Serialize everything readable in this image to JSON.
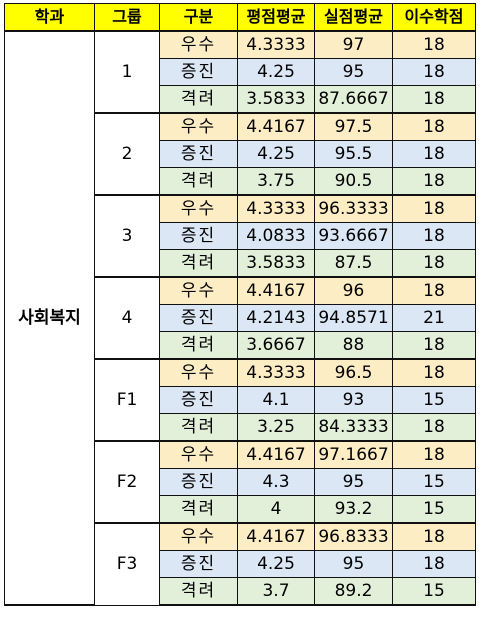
{
  "headers": {
    "dept": "학과",
    "group": "그룹",
    "type": "구분",
    "gpa": "평점평균",
    "real": "실점평균",
    "credits": "이수학점"
  },
  "dept": "사회복지",
  "groups": [
    {
      "name": "1",
      "rows": [
        {
          "type": "우수",
          "gpa": "4.3333",
          "real": "97",
          "credits": "18"
        },
        {
          "type": "증진",
          "gpa": "4.25",
          "real": "95",
          "credits": "18"
        },
        {
          "type": "격려",
          "gpa": "3.5833",
          "real": "87.6667",
          "credits": "18"
        }
      ]
    },
    {
      "name": "2",
      "rows": [
        {
          "type": "우수",
          "gpa": "4.4167",
          "real": "97.5",
          "credits": "18"
        },
        {
          "type": "증진",
          "gpa": "4.25",
          "real": "95.5",
          "credits": "18"
        },
        {
          "type": "격려",
          "gpa": "3.75",
          "real": "90.5",
          "credits": "18"
        }
      ]
    },
    {
      "name": "3",
      "rows": [
        {
          "type": "우수",
          "gpa": "4.3333",
          "real": "96.3333",
          "credits": "18"
        },
        {
          "type": "증진",
          "gpa": "4.0833",
          "real": "93.6667",
          "credits": "18"
        },
        {
          "type": "격려",
          "gpa": "3.5833",
          "real": "87.5",
          "credits": "18"
        }
      ]
    },
    {
      "name": "4",
      "rows": [
        {
          "type": "우수",
          "gpa": "4.4167",
          "real": "96",
          "credits": "18"
        },
        {
          "type": "증진",
          "gpa": "4.2143",
          "real": "94.8571",
          "credits": "21"
        },
        {
          "type": "격려",
          "gpa": "3.6667",
          "real": "88",
          "credits": "18"
        }
      ]
    },
    {
      "name": "F1",
      "rows": [
        {
          "type": "우수",
          "gpa": "4.3333",
          "real": "96.5",
          "credits": "18"
        },
        {
          "type": "증진",
          "gpa": "4.1",
          "real": "93",
          "credits": "15"
        },
        {
          "type": "격려",
          "gpa": "3.25",
          "real": "84.3333",
          "credits": "18"
        }
      ]
    },
    {
      "name": "F2",
      "rows": [
        {
          "type": "우수",
          "gpa": "4.4167",
          "real": "97.1667",
          "credits": "18"
        },
        {
          "type": "증진",
          "gpa": "4.3",
          "real": "95",
          "credits": "15"
        },
        {
          "type": "격려",
          "gpa": "4",
          "real": "93.2",
          "credits": "15"
        }
      ]
    },
    {
      "name": "F3",
      "rows": [
        {
          "type": "우수",
          "gpa": "4.4167",
          "real": "96.8333",
          "credits": "18"
        },
        {
          "type": "증진",
          "gpa": "4.25",
          "real": "95",
          "credits": "18"
        },
        {
          "type": "격려",
          "gpa": "3.7",
          "real": "89.2",
          "credits": "15"
        }
      ]
    }
  ],
  "colors": {
    "header": "#ffff00",
    "excellent": "#fdedc4",
    "advance": "#dbe7f5",
    "encourage": "#e2efd9"
  }
}
